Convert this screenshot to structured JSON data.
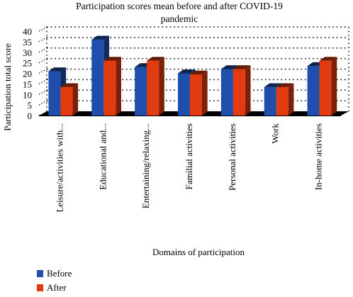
{
  "chart_data": {
    "type": "bar",
    "title": "Participation scores mean before and after COVID-19 pandemic",
    "title_lines": [
      "Participation scores mean before and after COVID-19",
      "pandemic"
    ],
    "xlabel": "Domains of participation",
    "ylabel": "Participation total score",
    "ylim": [
      0,
      40
    ],
    "yticks": [
      0,
      5,
      10,
      15,
      20,
      25,
      30,
      35,
      40
    ],
    "grid": true,
    "legend_position": "bottom-left",
    "categories": [
      "Leisure/activities with...",
      "Educational and...",
      "Entertaining/relaxing...",
      "Familial activities",
      "Personal activities",
      "Work",
      "In-home activities"
    ],
    "series": [
      {
        "name": "Before",
        "color": "#1f4fad",
        "values": [
          21,
          36,
          23,
          20,
          22,
          13.5,
          23.5
        ]
      },
      {
        "name": "After",
        "color": "#e33b10",
        "values": [
          13.5,
          26,
          26,
          19.5,
          22,
          13.5,
          26
        ]
      }
    ]
  }
}
